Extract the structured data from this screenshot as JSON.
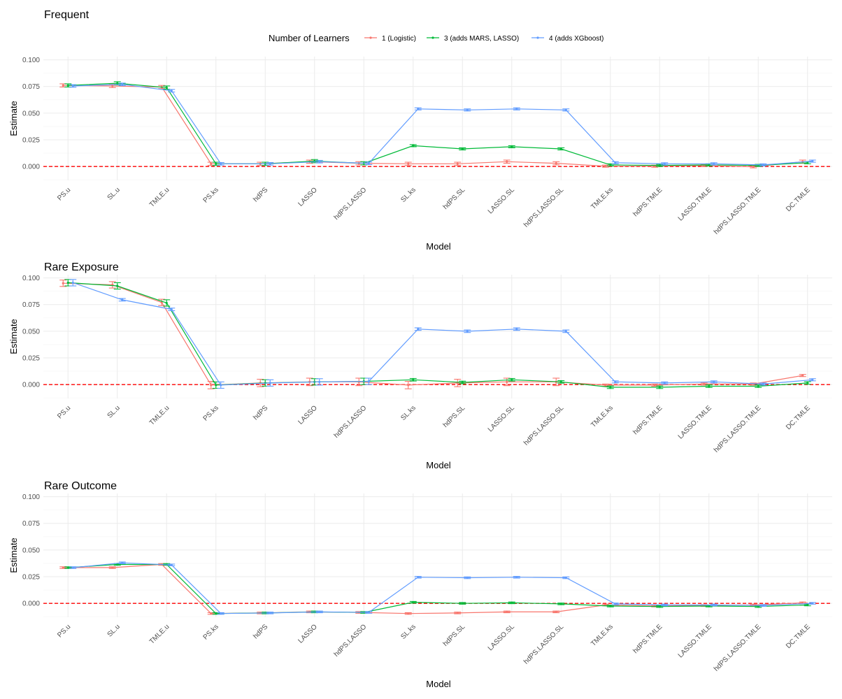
{
  "legend": {
    "title": "Number of Learners",
    "position": "top"
  },
  "colors": {
    "series": [
      "#F8766D",
      "#00BA38",
      "#619CFF"
    ],
    "reference_line": "#ff0000",
    "grid_major": "#ebebeb",
    "grid_minor": "#f5f5f5"
  },
  "chart_data": [
    {
      "type": "line",
      "title": "Frequent",
      "xlabel": "Model",
      "ylabel": "Estimate",
      "ylim": [
        -0.013,
        0.103
      ],
      "yticks": [
        "0.000",
        "0.025",
        "0.050",
        "0.075",
        "0.100"
      ],
      "yticks_values": [
        0,
        0.025,
        0.05,
        0.075,
        0.1
      ],
      "reference_line": 0,
      "grid": true,
      "categories": [
        "PS.u",
        "SL.u",
        "TMLE.u",
        "PS.ks",
        "hdPS",
        "LASSO",
        "hdPS.LASSO",
        "SL.ks",
        "hdPS.SL",
        "LASSO.SL",
        "hdPS.LASSO.SL",
        "TMLE.ks",
        "hdPS.TMLE",
        "LASSO.TMLE",
        "hdPS.LASSO.TMLE",
        "DC.TMLE"
      ],
      "series": [
        {
          "name": "1 (Logistic)",
          "values": [
            0.076,
            0.0755,
            0.0745,
            0.0025,
            0.0025,
            0.0045,
            0.003,
            0.0025,
            0.0025,
            0.0045,
            0.003,
            0.0003,
            0.0003,
            0.0008,
            -0.0003,
            0.0045
          ],
          "err": [
            0.0015,
            0.0015,
            0.0015,
            0.0015,
            0.0015,
            0.0015,
            0.0015,
            0.0015,
            0.0015,
            0.0015,
            0.0015,
            0.001,
            0.001,
            0.001,
            0.001,
            0.0015
          ]
        },
        {
          "name": "3 (adds MARS, LASSO)",
          "values": [
            0.076,
            0.078,
            0.074,
            0.0025,
            0.0025,
            0.005,
            0.003,
            0.0195,
            0.0165,
            0.0185,
            0.0165,
            0.0015,
            0.001,
            0.0015,
            0.001,
            0.0035
          ],
          "err": [
            0.0015,
            0.0015,
            0.0015,
            0.0015,
            0.0015,
            0.0015,
            0.0015,
            0.001,
            0.001,
            0.001,
            0.001,
            0.001,
            0.001,
            0.001,
            0.001,
            0.001
          ]
        },
        {
          "name": "4 (adds XGboost)",
          "values": [
            0.0755,
            0.077,
            0.071,
            0.0025,
            0.0025,
            0.0045,
            0.003,
            0.054,
            0.053,
            0.054,
            0.053,
            0.0035,
            0.0025,
            0.0025,
            0.0015,
            0.005
          ],
          "err": [
            0.0012,
            0.0012,
            0.0012,
            0.0012,
            0.0012,
            0.0012,
            0.0012,
            0.001,
            0.001,
            0.001,
            0.001,
            0.001,
            0.001,
            0.001,
            0.001,
            0.001
          ]
        }
      ]
    },
    {
      "type": "line",
      "title": "Rare Exposure",
      "xlabel": "Model",
      "ylabel": "Estimate",
      "ylim": [
        -0.013,
        0.103
      ],
      "yticks": [
        "0.000",
        "0.025",
        "0.050",
        "0.075",
        "0.100"
      ],
      "yticks_values": [
        0,
        0.025,
        0.05,
        0.075,
        0.1
      ],
      "reference_line": 0,
      "grid": true,
      "categories": [
        "PS.u",
        "SL.u",
        "TMLE.u",
        "PS.ks",
        "hdPS",
        "LASSO",
        "hdPS.LASSO",
        "SL.ks",
        "hdPS.SL",
        "LASSO.SL",
        "hdPS.LASSO.SL",
        "TMLE.ks",
        "hdPS.TMLE",
        "LASSO.TMLE",
        "hdPS.LASSO.TMLE",
        "DC.TMLE"
      ],
      "series": [
        {
          "name": "1 (Logistic)",
          "values": [
            0.095,
            0.0935,
            0.077,
            -0.0005,
            0.0015,
            0.0025,
            0.0025,
            -0.0005,
            0.0015,
            0.0025,
            0.0025,
            -0.0005,
            -0.0005,
            0.0005,
            0.0005,
            0.0085
          ],
          "err": [
            0.003,
            0.003,
            0.003,
            0.0035,
            0.0035,
            0.0035,
            0.0035,
            0.0035,
            0.0035,
            0.0035,
            0.0035,
            0.001,
            0.001,
            0.001,
            0.001,
            0.001
          ]
        },
        {
          "name": "3 (adds MARS, LASSO)",
          "values": [
            0.0955,
            0.0925,
            0.0765,
            -0.0005,
            0.0015,
            0.0025,
            0.003,
            0.0045,
            0.002,
            0.0045,
            0.0025,
            -0.0025,
            -0.0025,
            -0.0015,
            -0.0015,
            0.0015
          ],
          "err": [
            0.003,
            0.003,
            0.003,
            0.003,
            0.003,
            0.003,
            0.003,
            0.0012,
            0.0012,
            0.0012,
            0.0012,
            0.0012,
            0.0012,
            0.0012,
            0.0012,
            0.0012
          ]
        },
        {
          "name": "4 (adds XGboost)",
          "values": [
            0.0955,
            0.0795,
            0.0705,
            -0.0005,
            0.0015,
            0.0025,
            0.003,
            0.052,
            0.05,
            0.052,
            0.05,
            0.0025,
            0.0015,
            0.0025,
            0.0005,
            0.0045
          ],
          "err": [
            0.003,
            0.0012,
            0.0012,
            0.003,
            0.003,
            0.003,
            0.003,
            0.0012,
            0.0012,
            0.0012,
            0.0012,
            0.001,
            0.001,
            0.001,
            0.001,
            0.001
          ]
        }
      ]
    },
    {
      "type": "line",
      "title": "Rare Outcome",
      "xlabel": "Model",
      "ylabel": "Estimate",
      "ylim": [
        -0.013,
        0.103
      ],
      "yticks": [
        "0.000",
        "0.025",
        "0.050",
        "0.075",
        "0.100"
      ],
      "yticks_values": [
        0,
        0.025,
        0.05,
        0.075,
        0.1
      ],
      "reference_line": 0,
      "grid": true,
      "categories": [
        "PS.u",
        "SL.u",
        "TMLE.u",
        "PS.ks",
        "hdPS",
        "LASSO",
        "hdPS.LASSO",
        "SL.ks",
        "hdPS.SL",
        "LASSO.SL",
        "hdPS.LASSO.SL",
        "TMLE.ks",
        "hdPS.TMLE",
        "LASSO.TMLE",
        "hdPS.LASSO.TMLE",
        "DC.TMLE"
      ],
      "series": [
        {
          "name": "1 (Logistic)",
          "values": [
            0.0335,
            0.0335,
            0.0365,
            -0.0095,
            -0.009,
            -0.008,
            -0.0085,
            -0.0095,
            -0.009,
            -0.008,
            -0.008,
            -0.0015,
            -0.0025,
            -0.002,
            -0.0015,
            0.0005
          ],
          "err": [
            0.0008,
            0.0008,
            0.0008,
            0.0008,
            0.0008,
            0.0008,
            0.0008,
            0.0008,
            0.0008,
            0.0008,
            0.0008,
            0.0008,
            0.0008,
            0.0008,
            0.0008,
            0.0008
          ]
        },
        {
          "name": "3 (adds MARS, LASSO)",
          "values": [
            0.0335,
            0.0365,
            0.0365,
            -0.0095,
            -0.009,
            -0.008,
            -0.0085,
            0.001,
            0.0,
            0.0005,
            -0.0005,
            -0.0025,
            -0.003,
            -0.0025,
            -0.003,
            -0.0015
          ],
          "err": [
            0.0008,
            0.0008,
            0.0008,
            0.0008,
            0.0008,
            0.0008,
            0.0008,
            0.0008,
            0.0008,
            0.0008,
            0.0008,
            0.0008,
            0.0008,
            0.0008,
            0.0008,
            0.0008
          ]
        },
        {
          "name": "4 (adds XGboost)",
          "values": [
            0.0335,
            0.038,
            0.036,
            -0.0095,
            -0.009,
            -0.008,
            -0.0085,
            0.0245,
            0.024,
            0.0245,
            0.024,
            -0.0005,
            -0.0015,
            -0.0015,
            -0.002,
            0.0
          ],
          "err": [
            0.0008,
            0.0008,
            0.0008,
            0.0008,
            0.0008,
            0.0008,
            0.0008,
            0.0008,
            0.0008,
            0.0008,
            0.0008,
            0.0008,
            0.0008,
            0.0008,
            0.0008,
            0.0008
          ]
        }
      ]
    }
  ]
}
